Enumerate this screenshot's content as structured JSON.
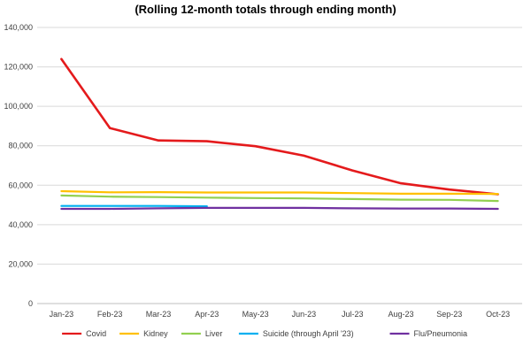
{
  "chart_data": {
    "type": "line",
    "title": "(Rolling 12-month totals through ending month)",
    "categories": [
      "Jan-23",
      "Feb-23",
      "Mar-23",
      "Apr-23",
      "May-23",
      "Jun-23",
      "Jul-23",
      "Aug-23",
      "Sep-23",
      "Oct-23"
    ],
    "ylim": [
      0,
      140000
    ],
    "yticks": [
      0,
      20000,
      40000,
      60000,
      80000,
      100000,
      120000,
      140000
    ],
    "ytick_labels": [
      "0",
      "20,000",
      "40,000",
      "60,000",
      "80,000",
      "100,000",
      "120,000",
      "140,000"
    ],
    "grid": true,
    "legend_position": "bottom",
    "series": [
      {
        "name": "Covid",
        "color": "#e41a1c",
        "values": [
          124000,
          89000,
          82700,
          82300,
          79800,
          75000,
          67500,
          61000,
          57800,
          55400
        ]
      },
      {
        "name": "Kidney",
        "color": "#ffc000",
        "values": [
          57000,
          56400,
          56500,
          56300,
          56300,
          56300,
          56000,
          55700,
          55700,
          55600
        ]
      },
      {
        "name": "Liver",
        "color": "#92d050",
        "values": [
          54800,
          54200,
          54000,
          53700,
          53500,
          53300,
          53000,
          52700,
          52600,
          52000
        ]
      },
      {
        "name": "Suicide (through April '23)",
        "color": "#00b0f0",
        "values": [
          49500,
          49500,
          49500,
          49300,
          null,
          null,
          null,
          null,
          null,
          null
        ]
      },
      {
        "name": "Flu/Pneumonia",
        "color": "#7030a0",
        "values": [
          48000,
          48000,
          48300,
          48500,
          48500,
          48500,
          48300,
          48200,
          48200,
          48000
        ]
      }
    ]
  }
}
